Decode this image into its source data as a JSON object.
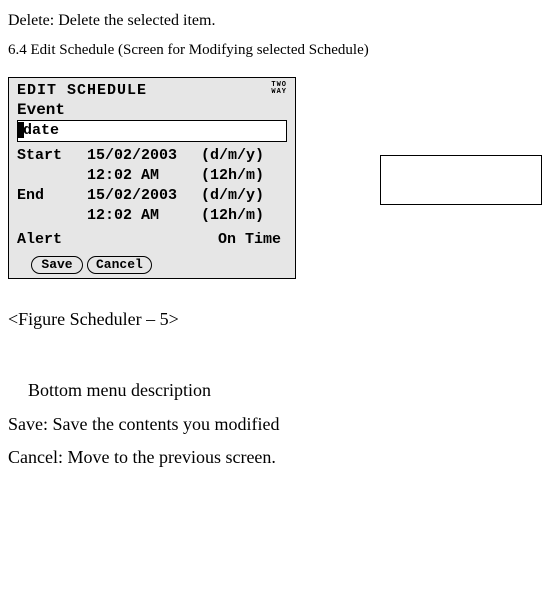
{
  "doc": {
    "delete_line": "Delete: Delete the selected item.",
    "section_heading": "6.4 Edit Schedule (Screen for Modifying selected Schedule)",
    "figure_caption": "<Figure Scheduler – 5>",
    "bottom_menu_heading": "Bottom menu description",
    "save_desc": "Save: Save the contents you modified",
    "cancel_desc": "Cancel: Move to the previous screen."
  },
  "lcd": {
    "title": "EDIT SCHEDULE",
    "indicator_top": "TWO",
    "indicator_bottom": "WAY",
    "event_label": "Event",
    "event_value": "date",
    "start_label": "Start",
    "start_date": "15/02/2003",
    "start_date_fmt": "(d/m/y)",
    "start_time": "12:02 AM",
    "start_time_fmt": "(12h/m)",
    "end_label": "End",
    "end_date": "15/02/2003",
    "end_date_fmt": "(d/m/y)",
    "end_time": "12:02 AM",
    "end_time_fmt": "(12h/m)",
    "alert_label": "Alert",
    "alert_value": "On Time",
    "save_btn": "Save",
    "cancel_btn": "Cancel"
  }
}
